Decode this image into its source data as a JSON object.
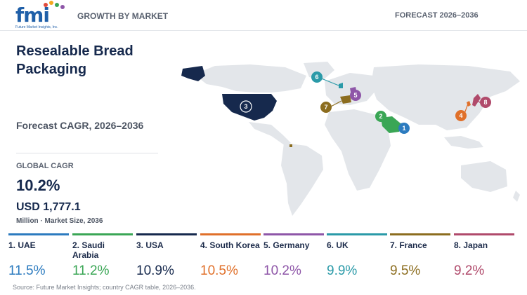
{
  "header": {
    "logo_text": "fmi",
    "logo_sub": "Future Market Insights, Inc.",
    "left_label": "GROWTH BY MARKET",
    "right_label": "FORECAST 2026–2036"
  },
  "title": "Resealable Bread Packaging",
  "subtitle": "Forecast CAGR, 2026–2036",
  "global": {
    "label": "GLOBAL CAGR",
    "value": "10.2%",
    "market_value": "USD 1,777.1",
    "market_label": "Million · Market Size, 2036"
  },
  "countries": [
    {
      "rank": "1",
      "name": "1. UAE",
      "cagr": "11.5%",
      "color": "#2c7bbf"
    },
    {
      "rank": "2",
      "name": "2. Saudi Arabia",
      "cagr": "11.2%",
      "color": "#3aa655"
    },
    {
      "rank": "3",
      "name": "3. USA",
      "cagr": "10.9%",
      "color": "#16294d"
    },
    {
      "rank": "4",
      "name": "4. South Korea",
      "cagr": "10.5%",
      "color": "#e0702a"
    },
    {
      "rank": "5",
      "name": "5. Germany",
      "cagr": "10.2%",
      "color": "#8e56a8"
    },
    {
      "rank": "6",
      "name": "6. UK",
      "cagr": "9.9%",
      "color": "#2a9aa8"
    },
    {
      "rank": "7",
      "name": "7. France",
      "cagr": "9.5%",
      "color": "#8c6d1f"
    },
    {
      "rank": "8",
      "name": "8. Japan",
      "cagr": "9.2%",
      "color": "#b04a6b"
    }
  ],
  "source": "Source: Future Market Insights; country CAGR table, 2026–2036."
}
